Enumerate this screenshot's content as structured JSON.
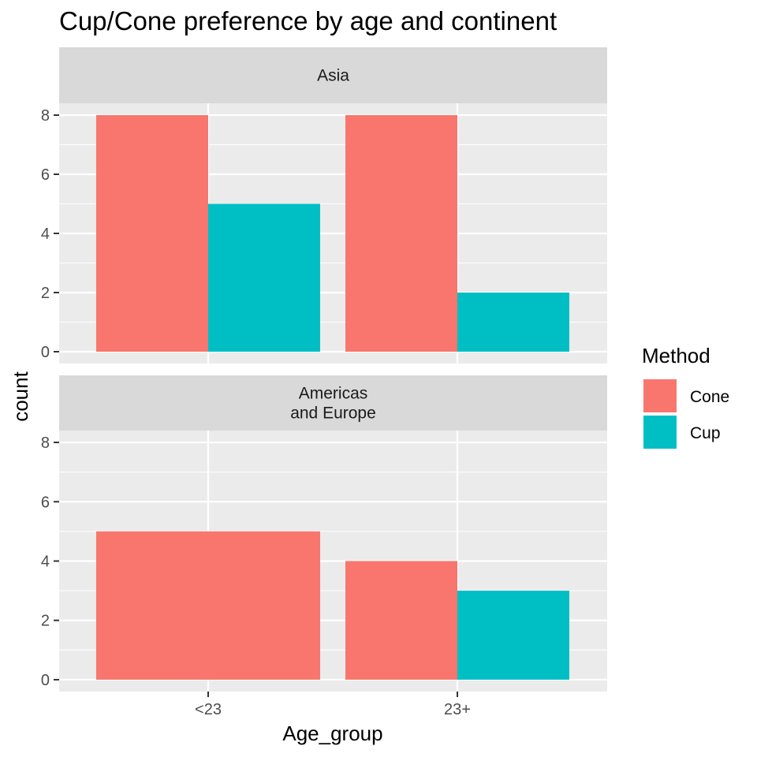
{
  "chart_data": {
    "type": "bar",
    "title": "Cup/Cone preference by age and continent",
    "xlabel": "Age_group",
    "ylabel": "count",
    "categories": [
      "<23",
      "23+"
    ],
    "ylim": [
      0,
      8
    ],
    "yticks": [
      "0",
      "2",
      "4",
      "6",
      "8"
    ],
    "grid": true,
    "legend": {
      "title": "Method",
      "placement": "right",
      "entries": [
        {
          "name": "Cone",
          "color": "#F8766D"
        },
        {
          "name": "Cup",
          "color": "#00BFC4"
        }
      ]
    },
    "facets": [
      {
        "label_lines": [
          "Asia"
        ],
        "groups": [
          {
            "category": "<23",
            "bars": [
              {
                "method": "Cone",
                "value": 8
              },
              {
                "method": "Cup",
                "value": 5
              }
            ]
          },
          {
            "category": "23+",
            "bars": [
              {
                "method": "Cone",
                "value": 8
              },
              {
                "method": "Cup",
                "value": 2
              }
            ]
          }
        ]
      },
      {
        "label_lines": [
          "Americas",
          "and Europe"
        ],
        "groups": [
          {
            "category": "<23",
            "bars": [
              {
                "method": "Cone",
                "value": 5
              }
            ]
          },
          {
            "category": "23+",
            "bars": [
              {
                "method": "Cone",
                "value": 4
              },
              {
                "method": "Cup",
                "value": 3
              }
            ]
          }
        ]
      }
    ]
  },
  "colors": {
    "panel_bg": "#EBEBEB",
    "strip_bg": "#D9D9D9",
    "grid": "#FFFFFF",
    "Cone": "#F8766D",
    "Cup": "#00BFC4"
  }
}
